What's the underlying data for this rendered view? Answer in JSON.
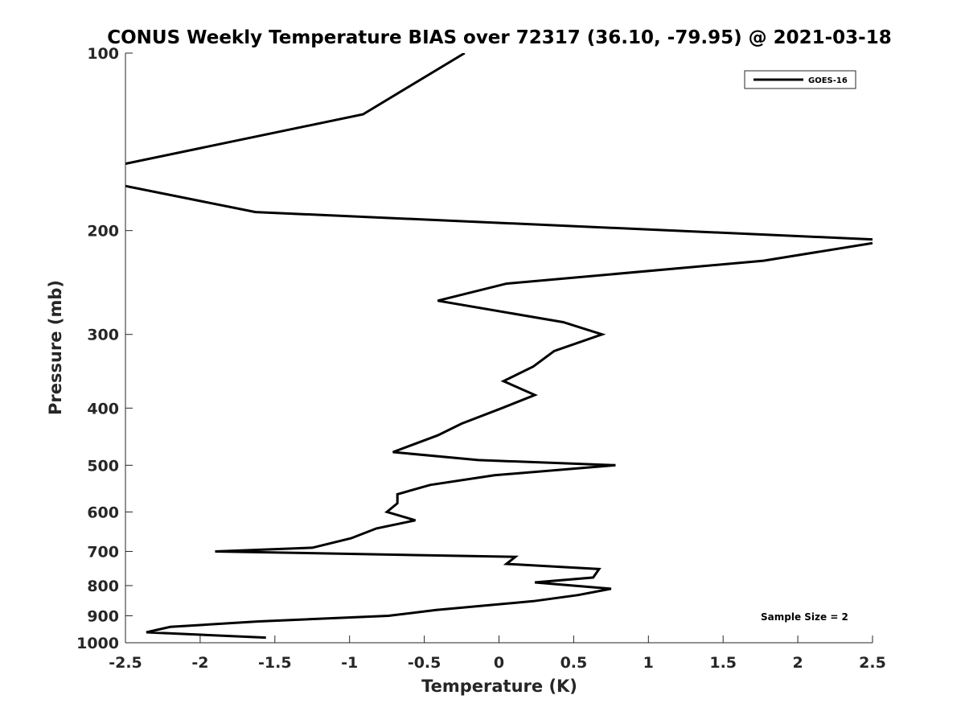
{
  "chart_data": {
    "type": "line",
    "title": "CONUS Weekly Temperature BIAS over 72317 (36.10, -79.95) @ 2021-03-18",
    "xlabel": "Temperature (K)",
    "ylabel": "Pressure (mb)",
    "xlim": [
      -2.5,
      2.5
    ],
    "ylim": [
      100,
      1000
    ],
    "y_scale": "log",
    "y_reversed": true,
    "x_ticks": [
      -2.5,
      -2,
      -1.5,
      -1,
      -0.5,
      0,
      0.5,
      1,
      1.5,
      2,
      2.5
    ],
    "x_tick_labels": [
      "-2.5",
      "-2",
      "-1.5",
      "-1",
      "-0.5",
      "0",
      "0.5",
      "1",
      "1.5",
      "2",
      "2.5"
    ],
    "y_ticks": [
      100,
      200,
      300,
      400,
      500,
      600,
      700,
      800,
      900,
      1000
    ],
    "y_tick_labels": [
      "100",
      "200",
      "300",
      "400",
      "500",
      "600",
      "700",
      "800",
      "900",
      "1000"
    ],
    "grid": false,
    "legend_position": "top-right",
    "annotation": "Sample Size = 2",
    "color": "#000000",
    "series": [
      {
        "name": "GOES-16",
        "x": [
          -0.23,
          -0.91,
          -2.5,
          null,
          -2.5,
          -1.63,
          2.5,
          null,
          2.5,
          1.77,
          0.05,
          -0.41,
          0.43,
          0.69,
          0.37,
          0.23,
          0.03,
          0.24,
          0.02,
          -0.25,
          -0.41,
          -0.71,
          -0.14,
          0.78,
          -0.03,
          -0.46,
          -0.68,
          -0.68,
          -0.75,
          -0.56,
          -0.82,
          -0.99,
          -1.25,
          -1.9,
          0.11,
          0.05,
          0.67,
          0.63,
          0.24,
          0.75,
          0.53,
          0.23,
          -0.42,
          -0.74,
          -1.61,
          -2.2,
          -2.36,
          -1.56
        ],
        "y": [
          100,
          127,
          154,
          null,
          168,
          186,
          207,
          null,
          210,
          225,
          246,
          263,
          286,
          300,
          320,
          340,
          360,
          380,
          400,
          425,
          445,
          475,
          490,
          500,
          520,
          540,
          560,
          580,
          600,
          620,
          640,
          665,
          690,
          700,
          715,
          735,
          750,
          775,
          790,
          810,
          830,
          850,
          880,
          900,
          920,
          940,
          960,
          980
        ]
      }
    ]
  }
}
